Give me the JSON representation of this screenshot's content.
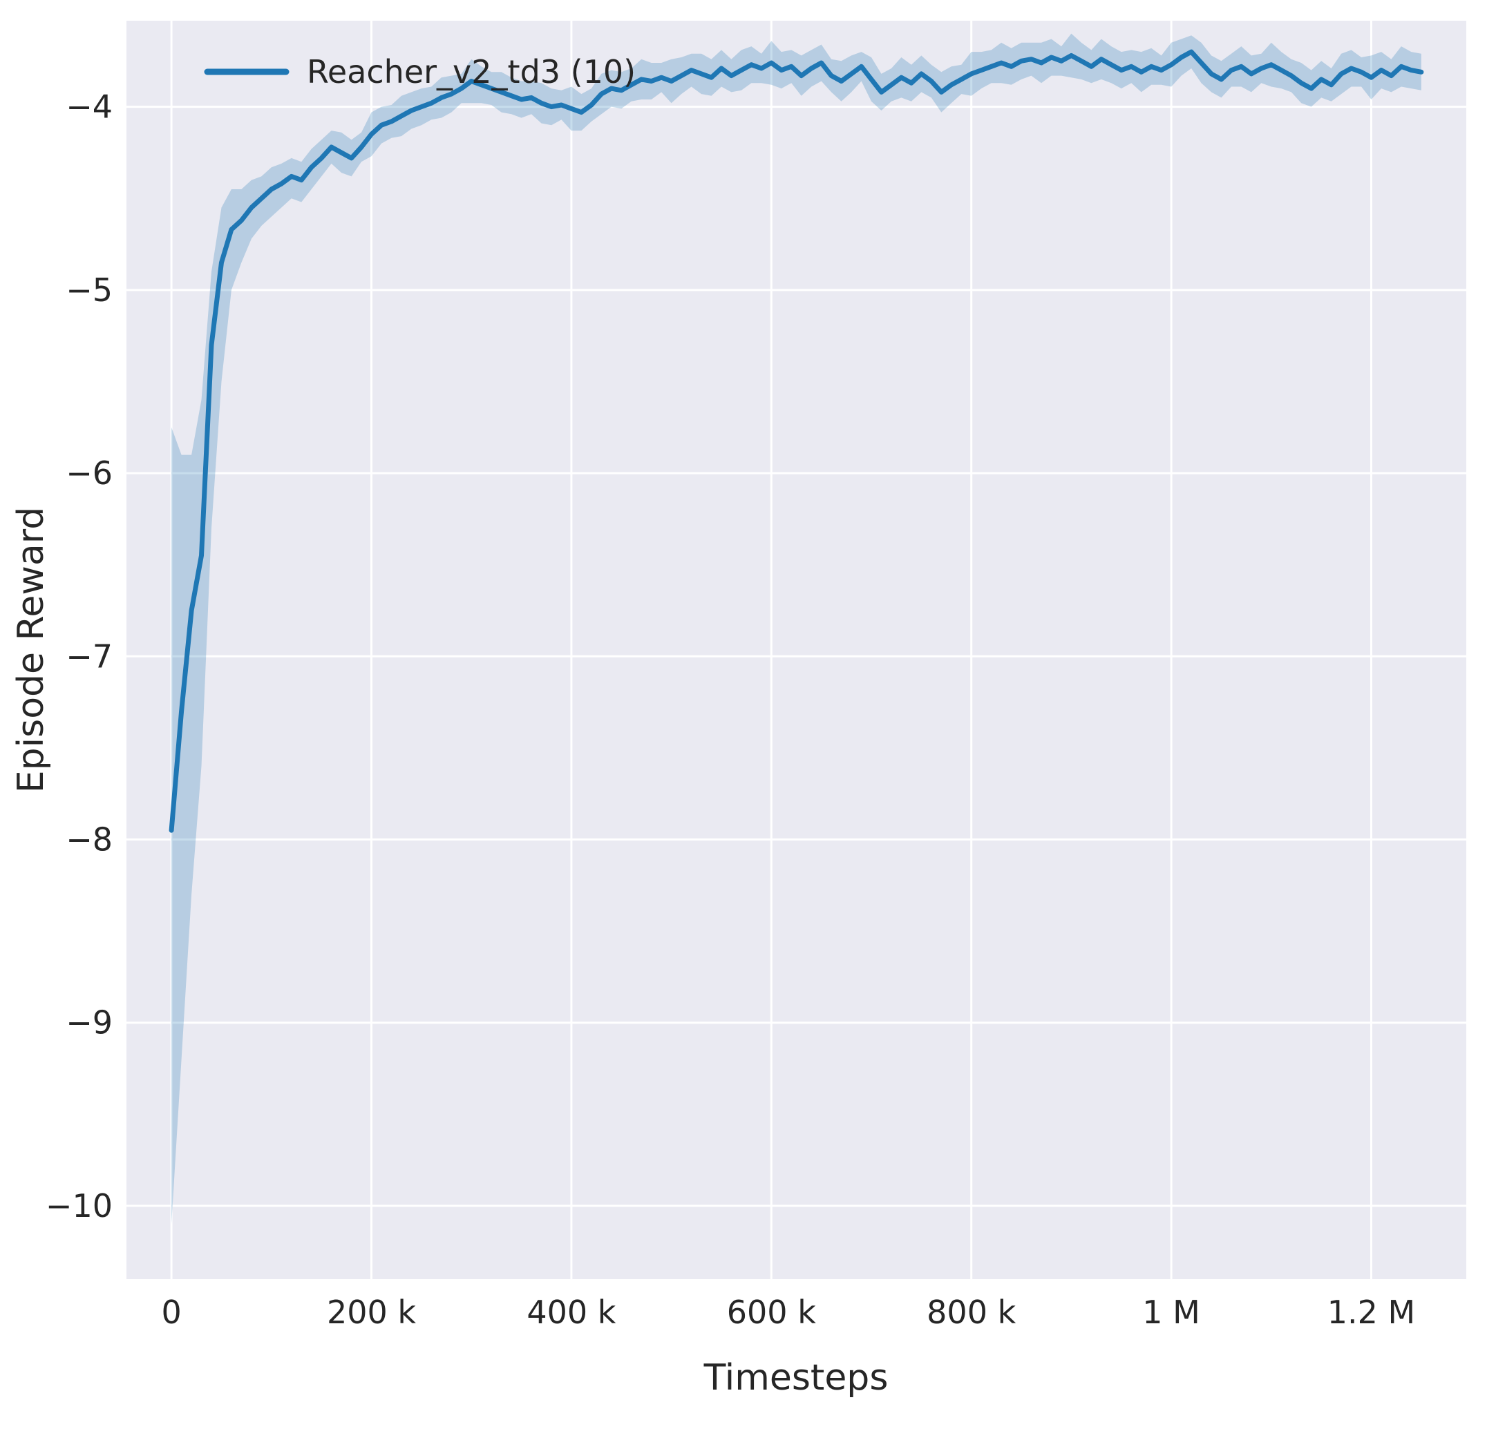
{
  "figure": {
    "background": "#ffffff",
    "plot_background": "#eaeaf2",
    "grid_color": "#ffffff"
  },
  "legend": {
    "entries": [
      {
        "label": "Reacher_v2_td3 (10)",
        "color": "#1f77b4"
      }
    ]
  },
  "chart_data": {
    "type": "line",
    "title": "",
    "xlabel": "Timesteps",
    "ylabel": "Episode Reward",
    "legend_position": "upper left",
    "grid": true,
    "xlim_k": [
      -45,
      1295
    ],
    "ylim": [
      -10.4,
      -3.53
    ],
    "x_ticks_k": [
      0,
      200,
      400,
      600,
      800,
      1000,
      1200
    ],
    "x_tick_labels": [
      "0",
      "200 k",
      "400 k",
      "600 k",
      "800 k",
      "1 M",
      "1.2 M"
    ],
    "y_ticks": [
      -4,
      -5,
      -6,
      -7,
      -8,
      -9,
      -10
    ],
    "y_tick_labels": [
      "−4",
      "−5",
      "−6",
      "−7",
      "−8",
      "−9",
      "−10"
    ],
    "series": [
      {
        "name": "Reacher_v2_td3 (10)",
        "color": "#1f77b4",
        "band_opacity": 0.25,
        "x_k": [
          0,
          10,
          20,
          30,
          40,
          50,
          60,
          70,
          80,
          90,
          100,
          110,
          120,
          130,
          140,
          150,
          160,
          170,
          180,
          190,
          200,
          210,
          220,
          230,
          240,
          250,
          260,
          270,
          280,
          290,
          300,
          310,
          320,
          330,
          340,
          350,
          360,
          370,
          380,
          390,
          400,
          410,
          420,
          430,
          440,
          450,
          460,
          470,
          480,
          490,
          500,
          510,
          520,
          530,
          540,
          550,
          560,
          570,
          580,
          590,
          600,
          610,
          620,
          630,
          640,
          650,
          660,
          670,
          680,
          690,
          700,
          710,
          720,
          730,
          740,
          750,
          760,
          770,
          780,
          790,
          800,
          810,
          820,
          830,
          840,
          850,
          860,
          870,
          880,
          890,
          900,
          910,
          920,
          930,
          940,
          950,
          960,
          970,
          980,
          990,
          1000,
          1010,
          1020,
          1030,
          1040,
          1050,
          1060,
          1070,
          1080,
          1090,
          1100,
          1110,
          1120,
          1130,
          1140,
          1150,
          1160,
          1170,
          1180,
          1190,
          1200,
          1210,
          1220,
          1230,
          1240,
          1250
        ],
        "mean": [
          -7.95,
          -7.3,
          -6.75,
          -6.45,
          -5.3,
          -4.85,
          -4.67,
          -4.62,
          -4.55,
          -4.5,
          -4.45,
          -4.42,
          -4.38,
          -4.4,
          -4.33,
          -4.28,
          -4.22,
          -4.25,
          -4.28,
          -4.22,
          -4.15,
          -4.1,
          -4.08,
          -4.05,
          -4.02,
          -4.0,
          -3.98,
          -3.95,
          -3.93,
          -3.9,
          -3.86,
          -3.88,
          -3.9,
          -3.92,
          -3.94,
          -3.96,
          -3.95,
          -3.98,
          -4.0,
          -3.99,
          -4.01,
          -4.03,
          -3.99,
          -3.93,
          -3.9,
          -3.91,
          -3.88,
          -3.85,
          -3.86,
          -3.84,
          -3.86,
          -3.83,
          -3.8,
          -3.82,
          -3.84,
          -3.79,
          -3.83,
          -3.8,
          -3.77,
          -3.79,
          -3.76,
          -3.8,
          -3.78,
          -3.83,
          -3.79,
          -3.76,
          -3.83,
          -3.86,
          -3.82,
          -3.78,
          -3.85,
          -3.92,
          -3.88,
          -3.84,
          -3.87,
          -3.82,
          -3.86,
          -3.92,
          -3.88,
          -3.85,
          -3.82,
          -3.8,
          -3.78,
          -3.76,
          -3.78,
          -3.75,
          -3.74,
          -3.76,
          -3.73,
          -3.75,
          -3.72,
          -3.75,
          -3.78,
          -3.74,
          -3.77,
          -3.8,
          -3.78,
          -3.81,
          -3.78,
          -3.8,
          -3.77,
          -3.73,
          -3.7,
          -3.76,
          -3.82,
          -3.85,
          -3.8,
          -3.78,
          -3.82,
          -3.79,
          -3.77,
          -3.8,
          -3.83,
          -3.87,
          -3.9,
          -3.85,
          -3.88,
          -3.82,
          -3.79,
          -3.81,
          -3.84,
          -3.8,
          -3.83,
          -3.78,
          -3.8,
          -3.81
        ],
        "spread_lo": [
          2.15,
          1.9,
          1.55,
          1.15,
          1.0,
          0.65,
          0.33,
          0.23,
          0.17,
          0.15,
          0.15,
          0.13,
          0.12,
          0.12,
          0.12,
          0.1,
          0.09,
          0.11,
          0.1,
          0.08,
          0.12,
          0.1,
          0.09,
          0.11,
          0.1,
          0.1,
          0.09,
          0.11,
          0.1,
          0.08,
          0.12,
          0.1,
          0.09,
          0.11,
          0.1,
          0.1,
          0.09,
          0.11,
          0.1,
          0.08,
          0.12,
          0.1,
          0.09,
          0.11,
          0.1,
          0.1,
          0.09,
          0.11,
          0.1,
          0.08,
          0.12,
          0.1,
          0.09,
          0.11,
          0.1,
          0.1,
          0.09,
          0.11,
          0.1,
          0.08,
          0.12,
          0.1,
          0.09,
          0.11,
          0.1,
          0.1,
          0.09,
          0.11,
          0.1,
          0.08,
          0.12,
          0.1,
          0.09,
          0.11,
          0.1,
          0.1,
          0.09,
          0.11,
          0.1,
          0.08,
          0.12,
          0.1,
          0.09,
          0.11,
          0.1,
          0.1,
          0.09,
          0.11,
          0.1,
          0.08,
          0.12,
          0.1,
          0.09,
          0.11,
          0.1,
          0.1,
          0.09,
          0.11,
          0.1,
          0.08,
          0.12,
          0.1,
          0.09,
          0.11,
          0.1,
          0.1,
          0.09,
          0.11,
          0.1,
          0.08,
          0.12,
          0.1,
          0.09,
          0.11,
          0.1,
          0.1,
          0.09,
          0.11,
          0.1,
          0.08,
          0.12,
          0.1,
          0.09,
          0.11,
          0.1,
          0.1
        ],
        "spread_hi": [
          2.2,
          1.4,
          0.85,
          0.85,
          0.4,
          0.3,
          0.22,
          0.17,
          0.15,
          0.12,
          0.12,
          0.11,
          0.1,
          0.1,
          0.1,
          0.1,
          0.09,
          0.11,
          0.1,
          0.08,
          0.12,
          0.1,
          0.09,
          0.11,
          0.1,
          0.1,
          0.09,
          0.11,
          0.1,
          0.08,
          0.12,
          0.1,
          0.09,
          0.11,
          0.1,
          0.1,
          0.09,
          0.11,
          0.1,
          0.08,
          0.12,
          0.1,
          0.09,
          0.11,
          0.1,
          0.1,
          0.09,
          0.11,
          0.1,
          0.08,
          0.12,
          0.1,
          0.09,
          0.11,
          0.1,
          0.1,
          0.09,
          0.11,
          0.1,
          0.08,
          0.12,
          0.1,
          0.09,
          0.11,
          0.1,
          0.1,
          0.09,
          0.11,
          0.1,
          0.08,
          0.12,
          0.1,
          0.09,
          0.11,
          0.1,
          0.1,
          0.09,
          0.11,
          0.1,
          0.08,
          0.12,
          0.1,
          0.09,
          0.11,
          0.1,
          0.1,
          0.09,
          0.11,
          0.1,
          0.08,
          0.12,
          0.1,
          0.09,
          0.11,
          0.1,
          0.1,
          0.09,
          0.11,
          0.1,
          0.08,
          0.12,
          0.1,
          0.09,
          0.11,
          0.1,
          0.1,
          0.09,
          0.11,
          0.1,
          0.08,
          0.12,
          0.1,
          0.09,
          0.11,
          0.1,
          0.1,
          0.09,
          0.11,
          0.1,
          0.08,
          0.12,
          0.1,
          0.09,
          0.11,
          0.1,
          0.1
        ]
      }
    ]
  }
}
